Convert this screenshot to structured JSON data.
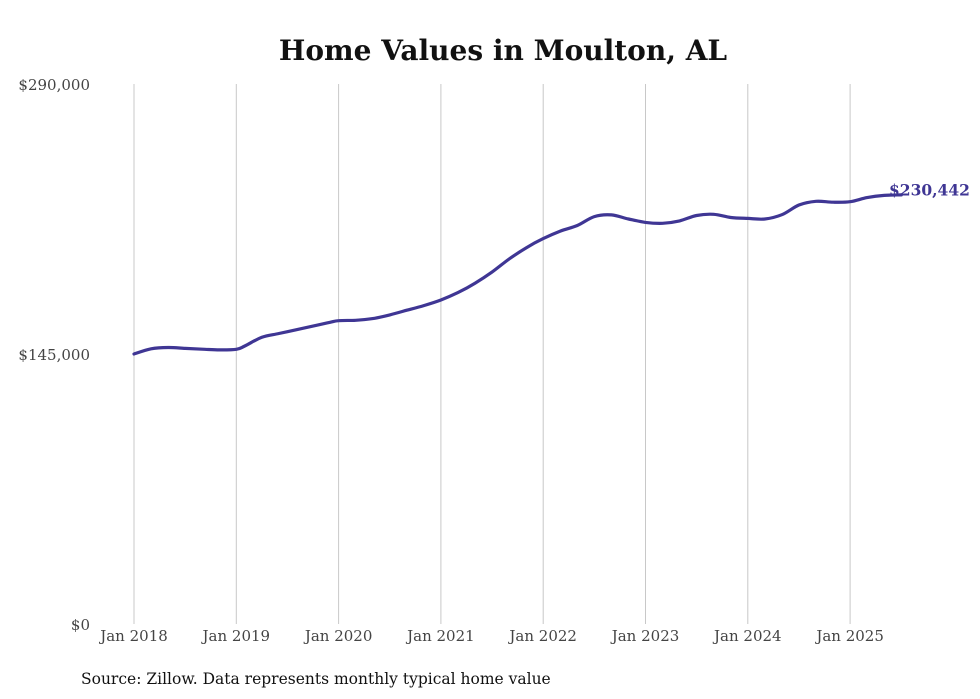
{
  "chart_data": {
    "type": "line",
    "title": "Home Values in Moulton, AL",
    "source_note": "Source: Zillow. Data represents monthly typical home value",
    "series_color": "#3f3694",
    "grid_color": "#c8c8c8",
    "ylim": [
      0,
      290000
    ],
    "y_ticks": [
      {
        "value": 0,
        "label": "$0"
      },
      {
        "value": 145000,
        "label": "$145,000"
      },
      {
        "value": 290000,
        "label": "$290,000"
      }
    ],
    "x_ticks": [
      {
        "value": "2018-01",
        "label": "Jan 2018"
      },
      {
        "value": "2019-01",
        "label": "Jan 2019"
      },
      {
        "value": "2020-01",
        "label": "Jan 2020"
      },
      {
        "value": "2021-01",
        "label": "Jan 2021"
      },
      {
        "value": "2022-01",
        "label": "Jan 2022"
      },
      {
        "value": "2023-01",
        "label": "Jan 2023"
      },
      {
        "value": "2024-01",
        "label": "Jan 2024"
      },
      {
        "value": "2025-01",
        "label": "Jan 2025"
      }
    ],
    "end_label": "$230,442",
    "series": [
      {
        "points": [
          [
            "2018-01",
            145000
          ],
          [
            "2018-03",
            147800
          ],
          [
            "2018-05",
            148500
          ],
          [
            "2018-07",
            148000
          ],
          [
            "2018-09",
            147600
          ],
          [
            "2018-11",
            147200
          ],
          [
            "2019-01",
            147500
          ],
          [
            "2019-02",
            149300
          ],
          [
            "2019-04",
            154000
          ],
          [
            "2019-06",
            156000
          ],
          [
            "2019-08",
            158000
          ],
          [
            "2019-10",
            160000
          ],
          [
            "2019-12",
            162000
          ],
          [
            "2020-01",
            162900
          ],
          [
            "2020-03",
            163100
          ],
          [
            "2020-05",
            164000
          ],
          [
            "2020-07",
            166000
          ],
          [
            "2020-09",
            168500
          ],
          [
            "2020-11",
            171000
          ],
          [
            "2021-01",
            174000
          ],
          [
            "2021-03",
            178000
          ],
          [
            "2021-05",
            183000
          ],
          [
            "2021-07",
            189000
          ],
          [
            "2021-09",
            196000
          ],
          [
            "2021-11",
            202000
          ],
          [
            "2022-01",
            207000
          ],
          [
            "2022-03",
            211000
          ],
          [
            "2022-05",
            214000
          ],
          [
            "2022-07",
            218800
          ],
          [
            "2022-09",
            219700
          ],
          [
            "2022-11",
            217500
          ],
          [
            "2023-01",
            215700
          ],
          [
            "2023-03",
            215200
          ],
          [
            "2023-05",
            216500
          ],
          [
            "2023-07",
            219400
          ],
          [
            "2023-09",
            220000
          ],
          [
            "2023-11",
            218300
          ],
          [
            "2024-01",
            217800
          ],
          [
            "2024-03",
            217500
          ],
          [
            "2024-05",
            219800
          ],
          [
            "2024-07",
            225000
          ],
          [
            "2024-09",
            227000
          ],
          [
            "2024-11",
            226500
          ],
          [
            "2025-01",
            226800
          ],
          [
            "2025-03",
            229000
          ],
          [
            "2025-05",
            230200
          ],
          [
            "2025-07",
            230442
          ]
        ]
      }
    ]
  }
}
